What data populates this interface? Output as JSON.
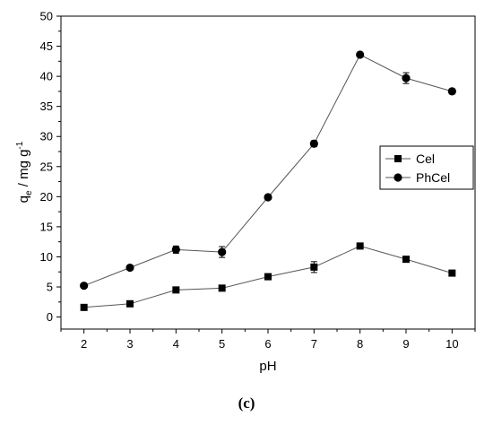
{
  "chart_data": {
    "type": "line",
    "xlabel": "pH",
    "ylabel_main": "q",
    "ylabel_sub": "e",
    "ylabel_rest": " / mg g",
    "ylabel_sup": "-1",
    "xlim": [
      1.5,
      10.5
    ],
    "ylim": [
      -2,
      50
    ],
    "x_ticks": [
      2,
      3,
      4,
      5,
      6,
      7,
      8,
      9,
      10
    ],
    "y_ticks": [
      0,
      5,
      10,
      15,
      20,
      25,
      30,
      35,
      40,
      45,
      50
    ],
    "grid": false,
    "legend_position": "right",
    "x": [
      2,
      3,
      4,
      5,
      6,
      7,
      8,
      9,
      10
    ],
    "series": [
      {
        "name": "Cel",
        "marker": "square",
        "values": [
          1.6,
          2.2,
          4.5,
          4.8,
          6.7,
          8.3,
          11.8,
          9.6,
          7.3
        ],
        "errors": [
          0.2,
          0.2,
          0.3,
          0.3,
          0.3,
          0.9,
          0.3,
          0.3,
          0.2
        ]
      },
      {
        "name": "PhCel",
        "marker": "circle",
        "values": [
          5.2,
          8.2,
          11.2,
          10.8,
          19.9,
          28.8,
          43.6,
          39.7,
          37.5
        ],
        "errors": [
          0.3,
          0.3,
          0.6,
          0.9,
          0.3,
          0.5,
          0.3,
          0.9,
          0.4
        ]
      }
    ]
  },
  "panel_label": "(c)",
  "colors": {
    "line": "#555555",
    "marker": "#000000",
    "axis": "#000000"
  }
}
